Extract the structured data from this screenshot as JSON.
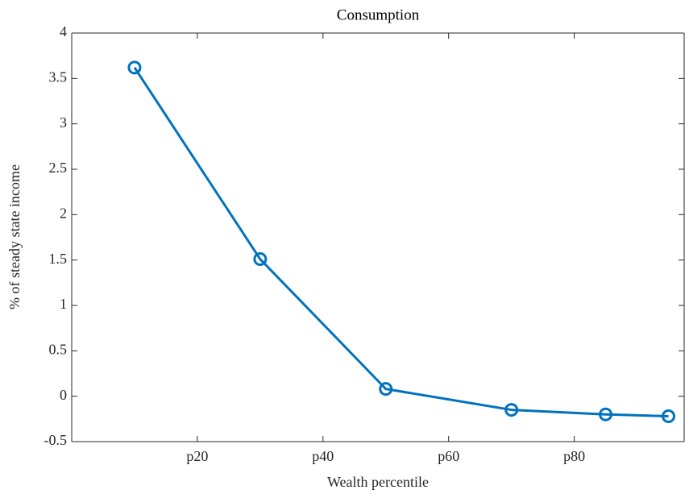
{
  "chart_data": {
    "type": "line",
    "title": "Consumption",
    "x_label": "Wealth percentile",
    "y_label": "% of steady state income",
    "x": [
      10,
      30,
      50,
      70,
      85,
      95
    ],
    "series": [
      {
        "name": "Consumption",
        "color": "#0072bd",
        "values": [
          3.62,
          1.51,
          0.08,
          -0.15,
          -0.2,
          -0.22
        ]
      }
    ],
    "xlim": [
      0,
      97.5
    ],
    "xticks": [
      {
        "value": 20,
        "label": "p20"
      },
      {
        "value": 40,
        "label": "p40"
      },
      {
        "value": 60,
        "label": "p60"
      },
      {
        "value": 80,
        "label": "p80"
      }
    ],
    "ylim": [
      -0.5,
      4
    ],
    "yticks": [
      -0.5,
      0,
      0.5,
      1,
      1.5,
      2,
      2.5,
      3,
      3.5,
      4
    ],
    "grid": false,
    "box": true,
    "marker": "circle"
  }
}
